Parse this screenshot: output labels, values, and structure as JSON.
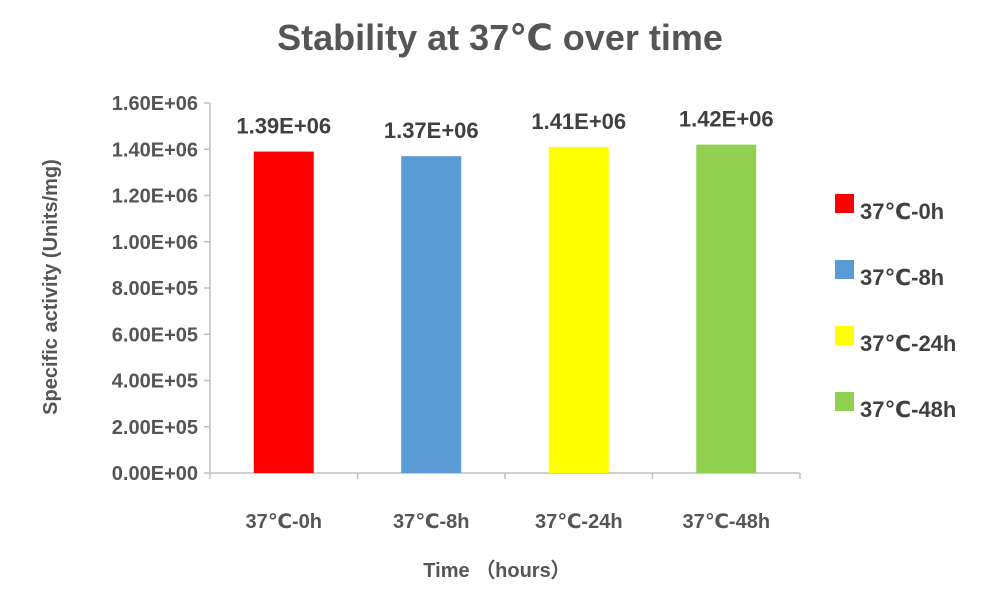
{
  "chart_data": {
    "type": "bar",
    "title": "Stability at 37℃ over time",
    "xlabel": "Time （hours）",
    "ylabel": "Specific activity (Units/mg)",
    "categories": [
      "37℃-0h",
      "37℃-8h",
      "37℃-24h",
      "37℃-48h"
    ],
    "values": [
      1390000,
      1370000,
      1410000,
      1420000
    ],
    "value_labels": [
      "1.39E+06",
      "1.37E+06",
      "1.41E+06",
      "1.42E+06"
    ],
    "colors": [
      "#ff0000",
      "#5b9bd5",
      "#ffff00",
      "#92d050"
    ],
    "ylim": [
      0,
      1600000
    ],
    "yticks": [
      0,
      200000,
      400000,
      600000,
      800000,
      1000000,
      1200000,
      1400000,
      1600000
    ],
    "ytick_labels": [
      "0.00E+00",
      "2.00E+05",
      "4.00E+05",
      "6.00E+05",
      "8.00E+05",
      "1.00E+06",
      "1.20E+06",
      "1.40E+06",
      "1.60E+06"
    ],
    "grid": false,
    "legend": {
      "position": "right",
      "entries": [
        "37℃-0h",
        "37℃-8h",
        "37℃-24h",
        "37℃-48h"
      ]
    }
  }
}
